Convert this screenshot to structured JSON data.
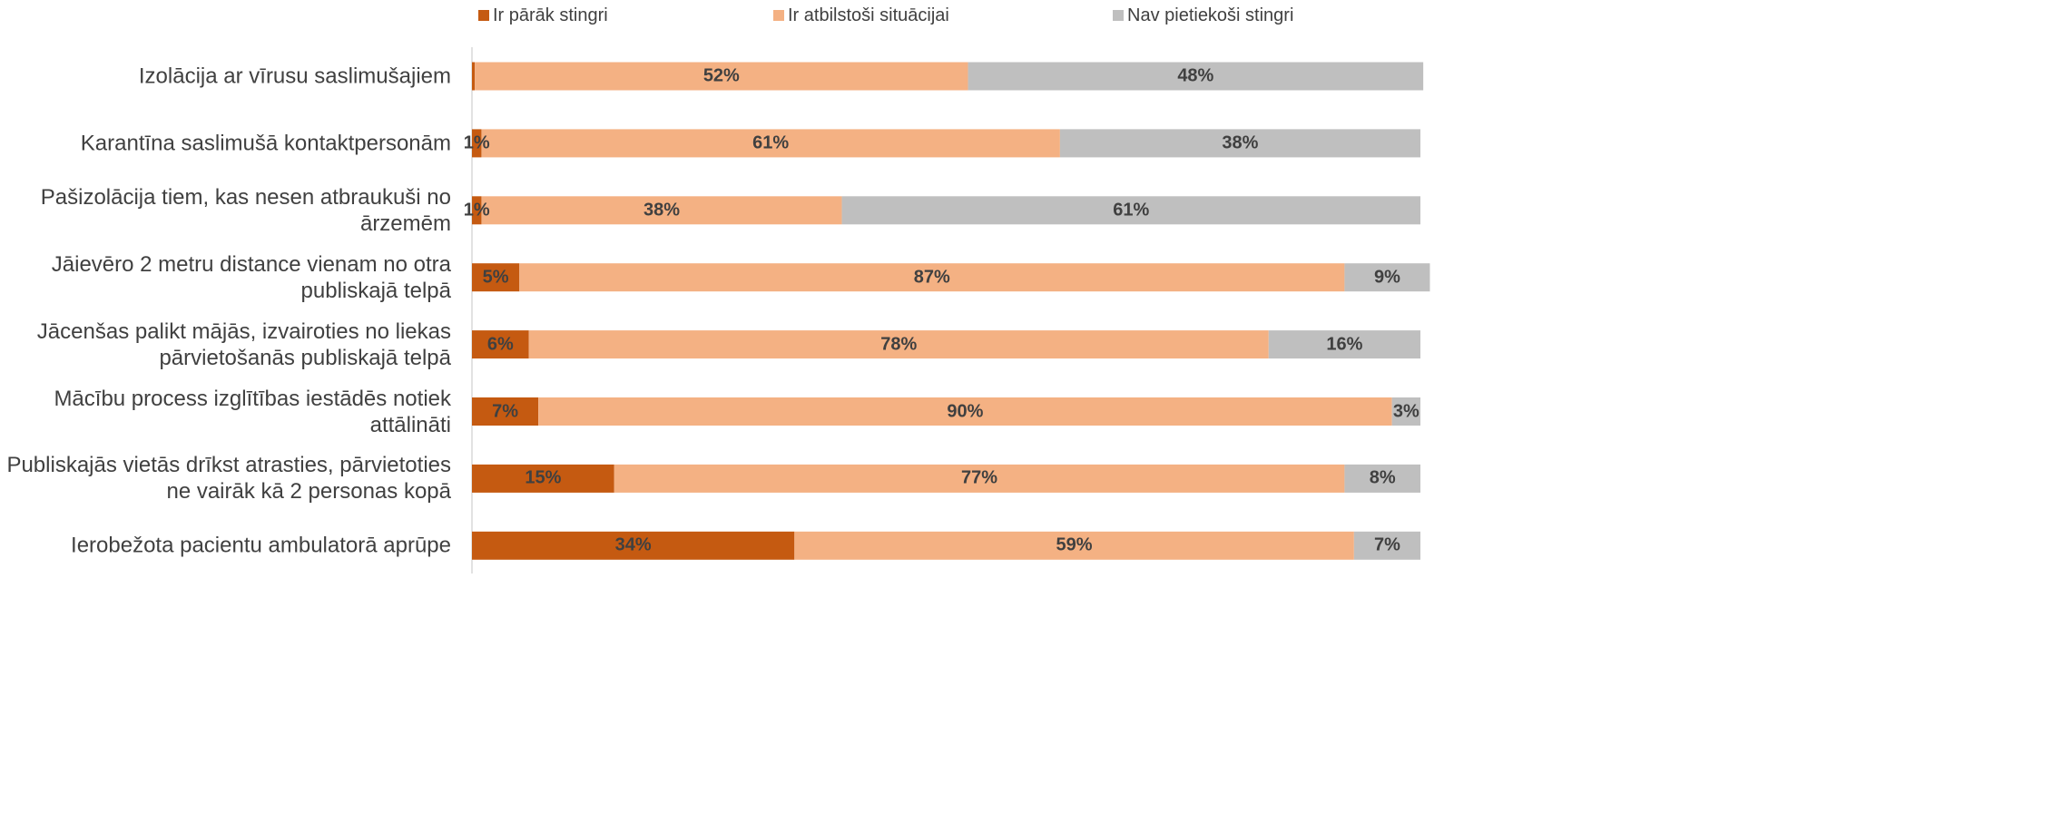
{
  "chart_data": {
    "type": "stacked_bar_horizontal",
    "categories": [
      "Izolācija ar vīrusu saslimušajiem",
      "Karantīna saslimušā kontaktpersonām",
      "Pašizolācija tiem, kas nesen atbraukuši no ārzemēm",
      "Jāievēro 2 metru distance vienam no otra publiskajā telpā",
      "Jācenšas palikt mājās, izvairoties no liekas pārvietošanās publiskajā telpā",
      "Mācību process izglītības iestādēs notiek attālināti",
      "Publiskajās vietās drīkst atrasties, pārvietoties ne vairāk kā 2 personas kopā",
      "Ierobežota pacientu ambulatorā aprūpe"
    ],
    "series": [
      {
        "name": "Ir pārāk stingri",
        "color": "#c55a11",
        "values": [
          0.3,
          1,
          1,
          5,
          6,
          7,
          15,
          34
        ],
        "value_labels": [
          null,
          "1%",
          "1%",
          "5%",
          "6%",
          "7%",
          "15%",
          "34%"
        ]
      },
      {
        "name": "Ir atbilstoši situācijai",
        "color": "#f4b183",
        "values": [
          52,
          61,
          38,
          87,
          78,
          90,
          77,
          59
        ],
        "value_labels": [
          "52%",
          "61%",
          "38%",
          "87%",
          "78%",
          "90%",
          "77%",
          "59%"
        ]
      },
      {
        "name": "Nav pietiekoši stingri",
        "color": "#bfbfbf",
        "values": [
          48,
          38,
          61,
          9,
          16,
          3,
          8,
          7
        ],
        "value_labels": [
          "48%",
          "38%",
          "61%",
          "9%",
          "16%",
          "3%",
          "8%",
          "7%"
        ]
      }
    ],
    "xlim": [
      0,
      100
    ],
    "legend": "top"
  }
}
